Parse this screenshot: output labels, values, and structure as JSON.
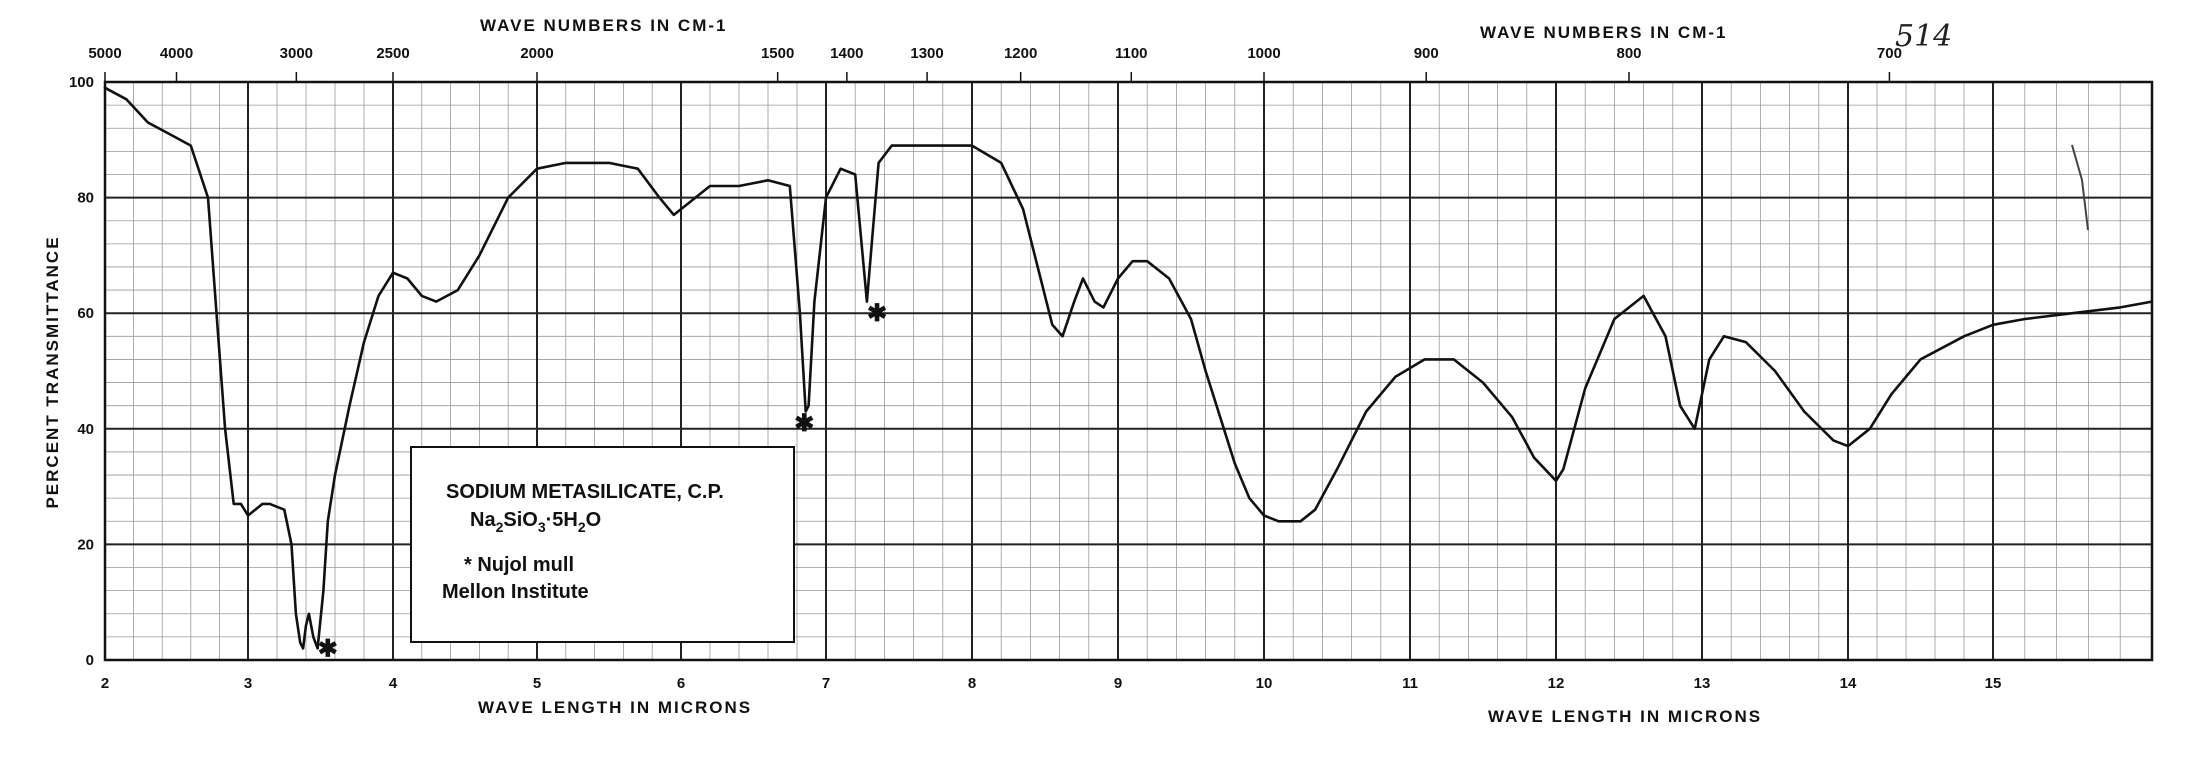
{
  "page_number": "514",
  "chart_data": {
    "type": "line",
    "xlabel": "WAVE LENGTH IN MICRONS",
    "xlabel_top": "WAVE NUMBERS IN CM-1",
    "ylabel": "PERCENT TRANSMITTANCE",
    "xlim": [
      2,
      16
    ],
    "ylim": [
      0,
      100
    ],
    "x_ticks": [
      "2",
      "3",
      "4",
      "5",
      "6",
      "7",
      "8",
      "9",
      "10",
      "11",
      "12",
      "13",
      "14",
      "15"
    ],
    "y_ticks": [
      "0",
      "20",
      "40",
      "60",
      "80",
      "100"
    ],
    "top_ticks": [
      {
        "label": "5000",
        "wn": 5000
      },
      {
        "label": "4000",
        "wn": 4000
      },
      {
        "label": "3000",
        "wn": 3000
      },
      {
        "label": "2500",
        "wn": 2500
      },
      {
        "label": "2000",
        "wn": 2000
      },
      {
        "label": "1500",
        "wn": 1500
      },
      {
        "label": "1400",
        "wn": 1400
      },
      {
        "label": "1300",
        "wn": 1300
      },
      {
        "label": "1200",
        "wn": 1200
      },
      {
        "label": "1100",
        "wn": 1100
      },
      {
        "label": "1000",
        "wn": 1000
      },
      {
        "label": "900",
        "wn": 900
      },
      {
        "label": "800",
        "wn": 800
      },
      {
        "label": "700",
        "wn": 700
      }
    ],
    "grid": true,
    "series": [
      {
        "x": [
          2.0,
          2.15,
          2.3,
          2.45,
          2.6,
          2.72,
          2.78,
          2.84,
          2.9,
          2.95,
          3.0,
          3.05,
          3.1,
          3.15,
          3.25,
          3.3,
          3.33,
          3.36,
          3.38,
          3.4,
          3.42,
          3.45,
          3.48,
          3.52,
          3.55,
          3.6,
          3.7,
          3.8,
          3.9,
          4.0,
          4.1,
          4.2,
          4.3,
          4.45,
          4.6,
          4.8,
          5.0,
          5.2,
          5.5,
          5.7,
          5.85,
          5.95,
          6.05,
          6.2,
          6.4,
          6.6,
          6.75,
          6.82,
          6.86,
          6.88,
          6.92,
          7.0,
          7.1,
          7.2,
          7.28,
          7.32,
          7.36,
          7.45,
          7.6,
          7.8,
          8.0,
          8.2,
          8.35,
          8.45,
          8.55,
          8.62,
          8.7,
          8.76,
          8.84,
          8.9,
          9.0,
          9.1,
          9.2,
          9.35,
          9.5,
          9.6,
          9.7,
          9.8,
          9.9,
          10.0,
          10.1,
          10.25,
          10.35,
          10.5,
          10.7,
          10.9,
          11.1,
          11.3,
          11.5,
          11.7,
          11.85,
          12.0,
          12.05,
          12.2,
          12.4,
          12.6,
          12.75,
          12.85,
          12.95,
          13.05,
          13.15,
          13.3,
          13.5,
          13.7,
          13.9,
          14.0,
          14.15,
          14.3,
          14.5,
          14.8,
          15.0,
          15.2,
          15.5,
          15.8,
          16.0
        ],
        "y": [
          99,
          97,
          93,
          91,
          89,
          80,
          60,
          40,
          27,
          27,
          25,
          26,
          27,
          27,
          26,
          20,
          8,
          3,
          2,
          6,
          8,
          4,
          2,
          12,
          24,
          32,
          44,
          55,
          63,
          67,
          66,
          63,
          62,
          64,
          70,
          80,
          85,
          86,
          86,
          85,
          80,
          77,
          79,
          82,
          82,
          83,
          82,
          60,
          43,
          44,
          62,
          80,
          85,
          84,
          62,
          74,
          86,
          89,
          89,
          89,
          89,
          86,
          78,
          68,
          58,
          56,
          62,
          66,
          62,
          61,
          66,
          69,
          69,
          66,
          59,
          50,
          42,
          34,
          28,
          25,
          24,
          24,
          26,
          33,
          43,
          49,
          52,
          52,
          48,
          42,
          35,
          31,
          33,
          47,
          59,
          63,
          56,
          44,
          40,
          52,
          56,
          55,
          50,
          43,
          38,
          37,
          40,
          46,
          52,
          56,
          58,
          59,
          60,
          61,
          62
        ]
      }
    ]
  },
  "annotations": {
    "box_line1": "SODIUM METASILICATE, C.P.",
    "formula_na": "Na",
    "formula_sub2": "2",
    "formula_si": "SiO",
    "formula_sub3": "3",
    "formula_dot5": "·5H",
    "formula_subh2": "2",
    "formula_o": "O",
    "box_note": "* Nujol mull",
    "box_source": "Mellon Institute",
    "marker_symbol": "✱",
    "markers": [
      {
        "x": 3.55,
        "y": 2
      },
      {
        "x": 6.85,
        "y": 41
      },
      {
        "x": 7.35,
        "y": 60
      }
    ]
  }
}
